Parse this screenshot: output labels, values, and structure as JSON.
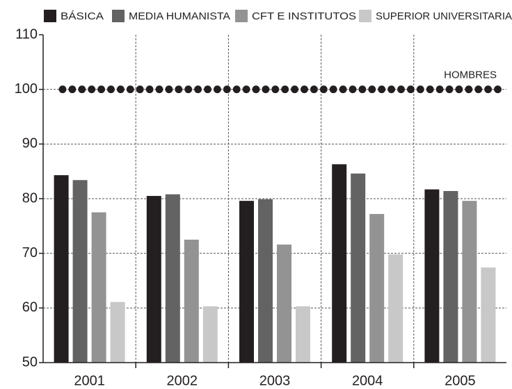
{
  "chart_data": {
    "type": "bar",
    "categories": [
      "2001",
      "2002",
      "2003",
      "2004",
      "2005"
    ],
    "series": [
      {
        "name": "BÁSICA",
        "color": "#231f20",
        "values": [
          84.3,
          80.5,
          79.6,
          86.3,
          81.7
        ]
      },
      {
        "name": "MEDIA HUMANISTA",
        "color": "#636363",
        "values": [
          83.4,
          80.8,
          79.9,
          84.6,
          81.4
        ]
      },
      {
        "name": "CFT E INSTITUTOS",
        "color": "#939393",
        "values": [
          77.5,
          72.5,
          71.6,
          77.2,
          79.6
        ]
      },
      {
        "name": "SUPERIOR UNIVERSITARIA",
        "color": "#c8c8c8",
        "values": [
          61.1,
          60.3,
          60.3,
          69.8,
          67.4
        ]
      }
    ],
    "reference_line": {
      "label": "HOMBRES",
      "value": 100,
      "color": "#231f20"
    },
    "ylim": [
      50,
      110
    ],
    "yticks": [
      50,
      60,
      70,
      80,
      90,
      100,
      110
    ],
    "grid": true
  }
}
